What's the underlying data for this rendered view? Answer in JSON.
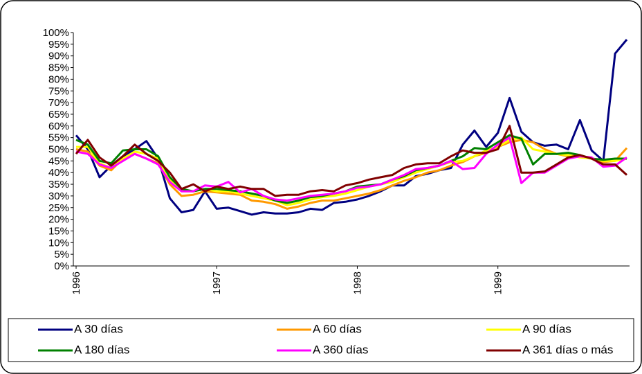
{
  "chart_data": {
    "type": "line",
    "categories": [
      "1996",
      null,
      null,
      null,
      null,
      null,
      null,
      null,
      null,
      null,
      null,
      null,
      "1997",
      null,
      null,
      null,
      null,
      null,
      null,
      null,
      null,
      null,
      null,
      null,
      "1998",
      null,
      null,
      null,
      null,
      null,
      null,
      null,
      null,
      null,
      null,
      null,
      "1999",
      null,
      null,
      null,
      null,
      null,
      null,
      null,
      null,
      null,
      null,
      null
    ],
    "ylim": [
      0,
      100
    ],
    "yticks": [
      {
        "value": 0,
        "label": "0%"
      },
      {
        "value": 5,
        "label": "5%"
      },
      {
        "value": 10,
        "label": "10%"
      },
      {
        "value": 15,
        "label": "15%"
      },
      {
        "value": 20,
        "label": "20%"
      },
      {
        "value": 25,
        "label": "25%"
      },
      {
        "value": 30,
        "label": "30%"
      },
      {
        "value": 35,
        "label": "35%"
      },
      {
        "value": 40,
        "label": "40%"
      },
      {
        "value": 45,
        "label": "45%"
      },
      {
        "value": 50,
        "label": "50%"
      },
      {
        "value": 55,
        "label": "55%"
      },
      {
        "value": 60,
        "label": "60%"
      },
      {
        "value": 65,
        "label": "65%"
      },
      {
        "value": 70,
        "label": "70%"
      },
      {
        "value": 75,
        "label": "75%"
      },
      {
        "value": 80,
        "label": "80%"
      },
      {
        "value": 85,
        "label": "85%"
      },
      {
        "value": 90,
        "label": "90%"
      },
      {
        "value": 95,
        "label": "95%"
      },
      {
        "value": 100,
        "label": "100%"
      }
    ],
    "series": [
      {
        "name": "A 30 días",
        "color": "#000080",
        "values": [
          56,
          50,
          38,
          43,
          47,
          50,
          53.5,
          46,
          29,
          23,
          24,
          32,
          24.5,
          25,
          23.5,
          22,
          23,
          22.5,
          22.5,
          23,
          24.5,
          24,
          27,
          27.5,
          28.5,
          30,
          32,
          34.5,
          34.5,
          38.5,
          39.5,
          41,
          42,
          52,
          58,
          51,
          57,
          72,
          57.5,
          53,
          51.5,
          52,
          50,
          62.5,
          49.5,
          45,
          91,
          97
        ]
      },
      {
        "name": "A 60 días",
        "color": "#ff9900",
        "values": [
          50,
          49,
          43,
          41,
          46,
          48,
          46,
          44,
          35,
          30,
          30.5,
          32,
          31.5,
          31,
          30.5,
          28,
          27.5,
          26.5,
          24.5,
          25.5,
          27,
          28,
          28,
          29,
          30,
          31,
          32.5,
          34.5,
          36.5,
          38,
          40,
          41,
          43,
          44.5,
          47,
          48.5,
          51,
          53,
          54,
          53,
          50,
          48,
          47,
          47.5,
          46,
          44.5,
          45,
          50.5
        ]
      },
      {
        "name": "A 90 días",
        "color": "#ffff00",
        "values": [
          51,
          51,
          44,
          42,
          46,
          49,
          48,
          46,
          37,
          32,
          32,
          33,
          32,
          32,
          31,
          30,
          29,
          28,
          26,
          27,
          28.5,
          29.5,
          30,
          31,
          32.5,
          34,
          35,
          36,
          38,
          40,
          41.5,
          43,
          44.5,
          45,
          47,
          49.5,
          51,
          54,
          55,
          50,
          49,
          48,
          47.5,
          46.5,
          46,
          45,
          45,
          46
        ]
      },
      {
        "name": "A 180 días",
        "color": "#008000",
        "values": [
          54,
          52,
          45,
          44,
          49.5,
          50,
          50,
          47,
          38,
          33,
          32,
          33,
          33,
          32.5,
          32,
          31,
          30,
          28,
          27,
          28,
          29.5,
          30,
          31,
          32,
          34,
          34.5,
          35,
          37,
          38.5,
          41,
          42,
          43,
          45,
          47,
          50.5,
          50,
          53,
          56,
          54.5,
          43.5,
          48,
          48,
          48.5,
          47.5,
          46,
          45.5,
          46,
          46
        ]
      },
      {
        "name": "A 360 días",
        "color": "#ff00ff",
        "values": [
          49,
          48,
          43.5,
          42,
          45,
          48,
          46,
          43.5,
          36,
          32,
          32,
          34.5,
          34,
          36,
          31.5,
          33,
          30,
          28.5,
          28,
          29,
          30,
          30.5,
          31,
          32,
          33.5,
          34,
          35,
          37,
          39,
          41.5,
          42,
          43,
          45,
          41.5,
          42,
          48,
          52,
          55,
          35.5,
          40,
          40,
          43,
          46,
          47,
          46.5,
          42.5,
          43,
          46.5
        ]
      },
      {
        "name": "A 361 días o más",
        "color": "#800000",
        "values": [
          48,
          54,
          46.5,
          43,
          47,
          52,
          48,
          45,
          40,
          33,
          35,
          32,
          34,
          33,
          34,
          33,
          33,
          30,
          30.5,
          30.5,
          32,
          32.5,
          32,
          34.5,
          35.5,
          37,
          38,
          39,
          42,
          43.5,
          44,
          44,
          47,
          49.5,
          48.5,
          48.5,
          50,
          60,
          40,
          40,
          40.5,
          43.5,
          46.5,
          47.5,
          46,
          43.5,
          43.5,
          39
        ]
      }
    ]
  }
}
